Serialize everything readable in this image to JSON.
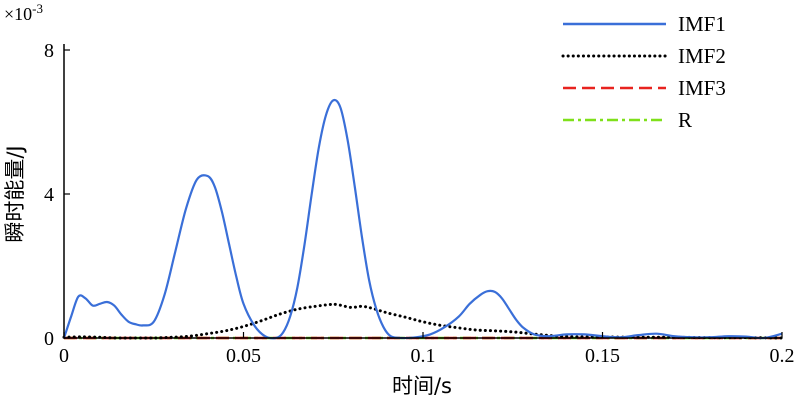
{
  "chart_data": {
    "type": "line",
    "xlabel": "时间/s",
    "ylabel": "瞬时能量/J",
    "y_multiplier": "×10",
    "y_multiplier_exp": "-3",
    "xlim": [
      0,
      0.2
    ],
    "ylim": [
      0,
      8
    ],
    "x_ticks": [
      0,
      0.05,
      0.1,
      0.15,
      0.2
    ],
    "x_tick_labels": [
      "0",
      "0.05",
      "0.1",
      "0.15",
      "0.2"
    ],
    "y_ticks": [
      0,
      4,
      8
    ],
    "y_tick_labels": [
      "0",
      "4",
      "8"
    ],
    "grid": false,
    "legend_position": "top-right",
    "series": [
      {
        "name": "IMF1",
        "color": "#3a6fd8",
        "dash": "solid",
        "x": [
          0,
          0.002,
          0.004,
          0.006,
          0.008,
          0.01,
          0.012,
          0.014,
          0.016,
          0.018,
          0.02,
          0.022,
          0.025,
          0.028,
          0.031,
          0.034,
          0.037,
          0.04,
          0.042,
          0.044,
          0.046,
          0.048,
          0.05,
          0.053,
          0.056,
          0.059,
          0.061,
          0.063,
          0.065,
          0.067,
          0.069,
          0.071,
          0.073,
          0.075,
          0.077,
          0.079,
          0.081,
          0.083,
          0.085,
          0.087,
          0.089,
          0.091,
          0.094,
          0.098,
          0.102,
          0.106,
          0.11,
          0.113,
          0.116,
          0.118,
          0.12,
          0.122,
          0.124,
          0.126,
          0.128,
          0.131,
          0.135,
          0.14,
          0.145,
          0.15,
          0.155,
          0.16,
          0.165,
          0.17,
          0.175,
          0.18,
          0.185,
          0.19,
          0.195,
          0.2
        ],
        "values": [
          0.0,
          0.6,
          1.15,
          1.1,
          0.9,
          0.95,
          1.0,
          0.9,
          0.65,
          0.45,
          0.38,
          0.35,
          0.45,
          1.2,
          2.4,
          3.6,
          4.4,
          4.5,
          4.2,
          3.5,
          2.6,
          1.7,
          0.95,
          0.35,
          0.05,
          0.0,
          0.15,
          0.6,
          1.4,
          2.6,
          4.0,
          5.3,
          6.2,
          6.6,
          6.4,
          5.5,
          4.2,
          2.8,
          1.6,
          0.8,
          0.3,
          0.05,
          0.0,
          0.02,
          0.1,
          0.3,
          0.6,
          0.95,
          1.2,
          1.3,
          1.28,
          1.1,
          0.8,
          0.5,
          0.28,
          0.1,
          0.05,
          0.1,
          0.1,
          0.05,
          0.02,
          0.08,
          0.12,
          0.05,
          0.02,
          0.02,
          0.05,
          0.04,
          0.0,
          0.12
        ]
      },
      {
        "name": "IMF2",
        "color": "#000000",
        "dash": "dotted",
        "x": [
          0,
          0.005,
          0.01,
          0.015,
          0.02,
          0.025,
          0.03,
          0.035,
          0.04,
          0.045,
          0.05,
          0.055,
          0.06,
          0.065,
          0.07,
          0.074,
          0.076,
          0.08,
          0.083,
          0.086,
          0.09,
          0.095,
          0.1,
          0.105,
          0.11,
          0.115,
          0.12,
          0.125,
          0.13,
          0.135,
          0.14,
          0.145,
          0.15,
          0.16,
          0.17,
          0.18,
          0.19,
          0.2
        ],
        "values": [
          0.02,
          0.03,
          0.02,
          0.0,
          0.0,
          0.0,
          0.02,
          0.05,
          0.12,
          0.2,
          0.32,
          0.48,
          0.66,
          0.8,
          0.88,
          0.93,
          0.93,
          0.85,
          0.88,
          0.82,
          0.7,
          0.58,
          0.45,
          0.35,
          0.28,
          0.22,
          0.2,
          0.17,
          0.12,
          0.07,
          0.04,
          0.03,
          0.03,
          0.02,
          0.02,
          0.01,
          0.01,
          0.0
        ]
      },
      {
        "name": "IMF3",
        "color": "#e8231f",
        "dash": "dashed",
        "x": [
          0,
          0.2
        ],
        "values": [
          0,
          0
        ]
      },
      {
        "name": "R",
        "color": "#7fe01a",
        "dash": "dashdot",
        "x": [
          0,
          0.2
        ],
        "values": [
          0,
          0
        ]
      }
    ]
  }
}
